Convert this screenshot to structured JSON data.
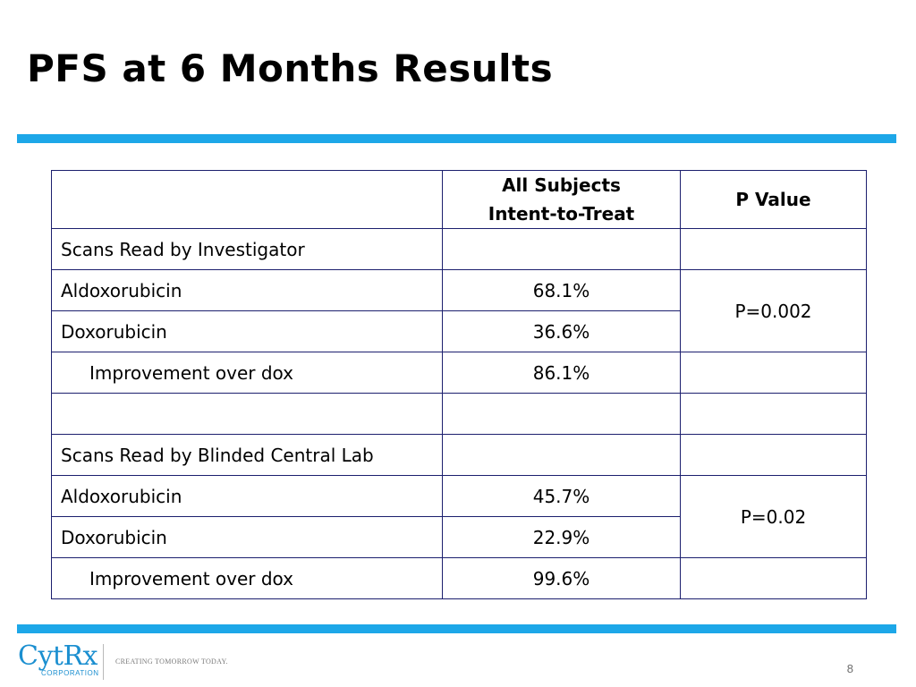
{
  "slide": {
    "title": "PFS at 6 Months Results",
    "page_number": "8"
  },
  "table": {
    "header": {
      "col1": "",
      "col2_line1": "All Subjects",
      "col2_line2": "Intent-to-Treat",
      "col3": "P Value"
    },
    "investigator": {
      "section_label": "Scans Read by Investigator",
      "aldox_label": "Aldoxorubicin",
      "aldox_value": "68.1%",
      "dox_label": "Doxorubicin",
      "dox_value": "36.6%",
      "p_value": "P=0.002",
      "improvement_label": "Improvement over dox",
      "improvement_value": "86.1%"
    },
    "central_lab": {
      "section_label": "Scans Read by Blinded Central Lab",
      "aldox_label": "Aldoxorubicin",
      "aldox_value": "45.7%",
      "dox_label": "Doxorubicin",
      "dox_value": "22.9%",
      "p_value": "P=0.02",
      "improvement_label": "Improvement over dox",
      "improvement_value": "99.6%"
    }
  },
  "footer": {
    "logo_name": "CytRx",
    "logo_sub": "CORPORATION",
    "tagline": "CREATING TOMORROW TODAY."
  },
  "colors": {
    "accent_rule": "#1da7e8",
    "table_border": "#1c1f6e",
    "logo": "#1b8fd0"
  }
}
